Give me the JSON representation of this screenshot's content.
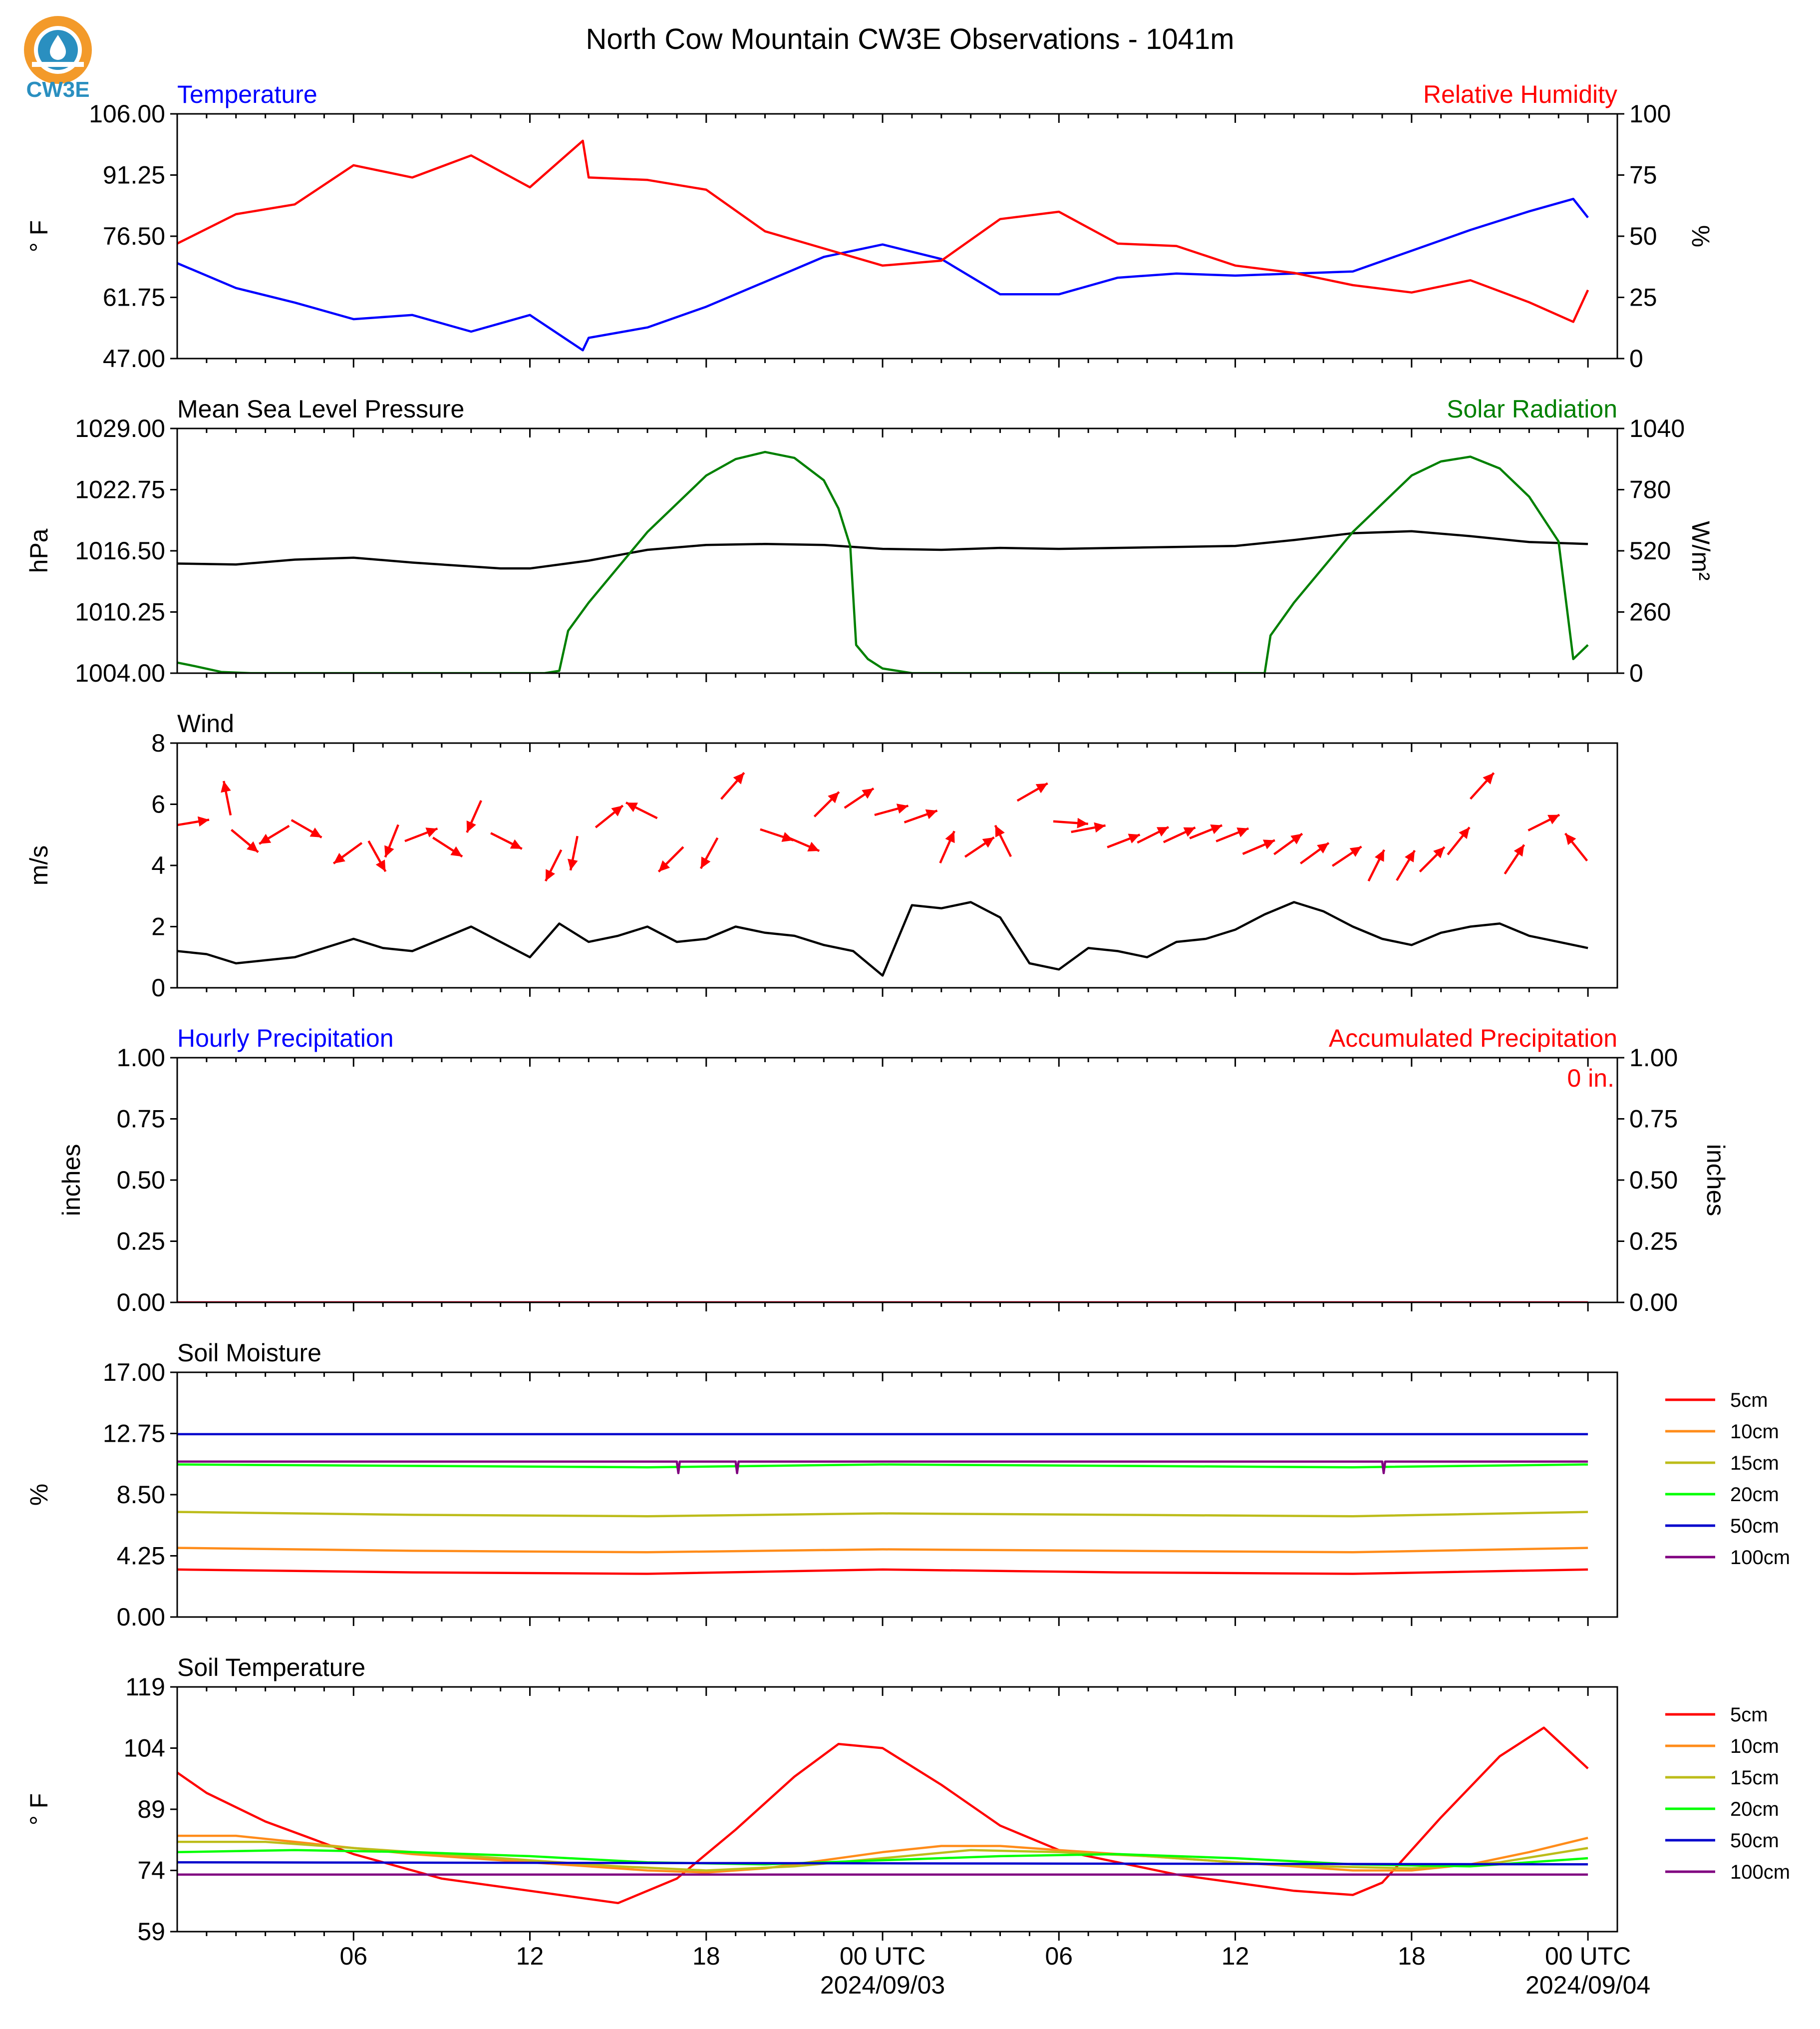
{
  "title": "North Cow Mountain CW3E Observations - 1041m",
  "logo": {
    "text": "CW3E",
    "colors": {
      "ring": "#f39a2a",
      "inner": "#2a8fc0",
      "text": "#2a8fc0"
    }
  },
  "x_axis": {
    "ticks": [
      "06",
      "12",
      "18",
      "00 UTC",
      "06",
      "12",
      "18",
      "00 UTC"
    ],
    "dates": [
      "2024/09/03",
      "2024/09/04"
    ]
  },
  "chart_data": [
    {
      "type": "line",
      "name": "temperature_rh",
      "title_left": "Temperature",
      "title_right": "Relative Humidity",
      "ylabel_left": "° F",
      "ylabel_right": "%",
      "yticks_left": [
        "106.00",
        "91.25",
        "76.50",
        "61.75",
        "47.00"
      ],
      "yticks_right": [
        "100",
        "75",
        "50",
        "25",
        "0"
      ],
      "ylim_left": [
        47,
        106
      ],
      "ylim_right": [
        0,
        100
      ],
      "x_hours": [
        0,
        2,
        4,
        6,
        8,
        10,
        12,
        13.8,
        14,
        16,
        18,
        20,
        22,
        24,
        26,
        28,
        30,
        32,
        34,
        36,
        38,
        40,
        42,
        44,
        46,
        47.5,
        48
      ],
      "series": [
        {
          "name": "Temperature",
          "color": "#0000ff",
          "axis": "left",
          "values": [
            70.0,
            64.0,
            60.5,
            56.5,
            57.5,
            53.5,
            57.5,
            49.0,
            52.0,
            54.5,
            59.5,
            65.5,
            71.5,
            74.5,
            71.0,
            62.5,
            62.5,
            66.5,
            67.5,
            67.0,
            67.5,
            68.0,
            73.0,
            78.0,
            82.5,
            85.5,
            81.0
          ]
        },
        {
          "name": "Relative Humidity",
          "color": "#ff0000",
          "axis": "right",
          "values": [
            47,
            59,
            63,
            79,
            74,
            83,
            70,
            89,
            74,
            73,
            69,
            52,
            45,
            38,
            40,
            57,
            60,
            47,
            46,
            38,
            35,
            30,
            27,
            32,
            23,
            15,
            28
          ]
        }
      ]
    },
    {
      "type": "line",
      "name": "pressure_solar",
      "title_left": "Mean Sea Level Pressure",
      "title_right": "Solar Radiation",
      "ylabel_left": "hPa",
      "ylabel_right": "W/m²",
      "yticks_left": [
        "1029.00",
        "1022.75",
        "1016.50",
        "1010.25",
        "1004.00"
      ],
      "yticks_right": [
        "1040",
        "780",
        "520",
        "260",
        "0"
      ],
      "ylim_left": [
        1004,
        1029
      ],
      "ylim_right": [
        0,
        1040
      ],
      "series": [
        {
          "name": "Mean Sea Level Pressure",
          "color": "#000000",
          "axis": "left",
          "x": [
            0,
            2,
            4,
            6,
            8,
            10,
            11,
            12,
            14,
            16,
            18,
            20,
            22,
            24,
            26,
            28,
            30,
            32,
            34,
            36,
            38,
            40,
            42,
            44,
            46,
            48
          ],
          "values": [
            1015.2,
            1015.1,
            1015.6,
            1015.8,
            1015.3,
            1014.9,
            1014.7,
            1014.7,
            1015.5,
            1016.6,
            1017.1,
            1017.2,
            1017.1,
            1016.7,
            1016.6,
            1016.8,
            1016.7,
            1016.8,
            1016.9,
            1017.0,
            1017.6,
            1018.3,
            1018.5,
            1018.0,
            1017.4,
            1017.2
          ]
        },
        {
          "name": "Solar Radiation",
          "color": "#008000",
          "axis": "right",
          "x": [
            0,
            0.6,
            1.5,
            2.5,
            12.5,
            13.0,
            13.3,
            14,
            16,
            18,
            19,
            20,
            21,
            22,
            22.5,
            22.9,
            23.1,
            23.5,
            24,
            25,
            37,
            37.2,
            38,
            40,
            42,
            43,
            44,
            45,
            46,
            47,
            47.5,
            48
          ],
          "values": [
            45,
            30,
            5,
            0,
            0,
            10,
            180,
            300,
            600,
            840,
            910,
            940,
            915,
            820,
            700,
            540,
            120,
            60,
            20,
            0,
            0,
            160,
            300,
            600,
            840,
            900,
            920,
            870,
            750,
            560,
            60,
            120
          ]
        }
      ]
    },
    {
      "type": "line",
      "name": "wind",
      "title_left": "Wind",
      "ylabel_left": "m/s",
      "yticks_left": [
        "8",
        "6",
        "4",
        "2",
        "0"
      ],
      "ylim_left": [
        0,
        8
      ],
      "series": [
        {
          "name": "Wind speed",
          "color": "#000000",
          "x": [
            0,
            1,
            2,
            3,
            4,
            5,
            6,
            7,
            8,
            9,
            10,
            11,
            12,
            13,
            14,
            15,
            16,
            17,
            18,
            19,
            20,
            21,
            22,
            23,
            24,
            25,
            26,
            27,
            28,
            29,
            30,
            31,
            32,
            33,
            34,
            35,
            36,
            37,
            38,
            39,
            40,
            41,
            42,
            43,
            44,
            45,
            46,
            47,
            48
          ],
          "values": [
            1.2,
            1.1,
            0.8,
            0.9,
            1.0,
            1.3,
            1.6,
            1.3,
            1.2,
            1.6,
            2.0,
            1.5,
            1.0,
            2.1,
            1.5,
            1.7,
            2.0,
            1.5,
            1.6,
            2.0,
            1.8,
            1.7,
            1.4,
            1.2,
            0.4,
            2.7,
            2.6,
            2.8,
            2.3,
            0.8,
            0.6,
            1.3,
            1.2,
            1.0,
            1.5,
            1.6,
            1.9,
            2.4,
            2.8,
            2.5,
            2.0,
            1.6,
            1.4,
            1.8,
            2.0,
            2.1,
            1.7,
            1.5,
            1.3
          ]
        }
      ],
      "barbs": {
        "color": "#ff0000",
        "x_hours": [
          0.5,
          1.7,
          2.3,
          3.3,
          4.4,
          5.8,
          6.8,
          7.3,
          8.3,
          9.2,
          10.1,
          11.2,
          12.8,
          13.5,
          14.7,
          15.8,
          16.8,
          18.1,
          18.9,
          20.4,
          21.3,
          22.1,
          23.2,
          24.3,
          25.3,
          26.2,
          27.3,
          28.1,
          29.1,
          30.4,
          31.0,
          32.2,
          33.2,
          34.1,
          35.0,
          35.9,
          36.8,
          37.8,
          38.7,
          39.8,
          40.8,
          41.8,
          42.7,
          43.6,
          44.4,
          45.5,
          46.5,
          47.6
        ],
        "y_ms": [
          5.4,
          6.2,
          4.8,
          5.0,
          5.2,
          4.4,
          4.3,
          4.8,
          5.0,
          4.6,
          5.6,
          4.8,
          4.0,
          4.4,
          5.6,
          5.8,
          4.2,
          4.4,
          6.6,
          5.0,
          4.7,
          6.0,
          6.2,
          5.8,
          5.6,
          4.6,
          4.6,
          4.8,
          6.4,
          5.4,
          5.2,
          4.8,
          5.0,
          5.0,
          5.1,
          5.0,
          4.6,
          4.7,
          4.4,
          4.3,
          4.0,
          4.0,
          4.2,
          4.8,
          6.6,
          4.2,
          5.4,
          4.6
        ],
        "u_ms": [
          1.8,
          -0.2,
          0.6,
          -1.0,
          1.4,
          -1.1,
          0.5,
          -0.4,
          1.3,
          1.4,
          -0.4,
          1.4,
          -0.5,
          -0.2,
          0.5,
          -0.6,
          -1.0,
          -0.6,
          0.7,
          1.8,
          1.4,
          0.7,
          1.2,
          1.1,
          1.4,
          0.4,
          1.2,
          -0.5,
          1.4,
          1.4,
          1.6,
          1.3,
          1.2,
          1.3,
          1.5,
          1.5,
          1.4,
          1.1,
          1.1,
          1.2,
          0.5,
          0.6,
          0.9,
          0.8,
          0.9,
          0.6,
          1.2,
          -0.8
        ],
        "v_ms": [
          0.3,
          1.0,
          -0.5,
          -0.6,
          -0.8,
          -0.8,
          -0.9,
          -1.0,
          0.5,
          -0.9,
          -0.9,
          -0.7,
          -1.0,
          -1.0,
          0.4,
          0.3,
          -1.0,
          -1.1,
          0.8,
          -0.6,
          -0.6,
          0.7,
          0.8,
          0.3,
          0.5,
          0.9,
          0.8,
          1.0,
          0.8,
          -0.1,
          0.3,
          0.5,
          0.6,
          0.6,
          0.6,
          0.6,
          0.6,
          0.8,
          0.8,
          0.8,
          1.0,
          1.0,
          0.9,
          1.0,
          1.0,
          0.9,
          0.6,
          1.0
        ]
      }
    },
    {
      "type": "line",
      "name": "precipitation",
      "title_left": "Hourly Precipitation",
      "title_right": "Accumulated Precipitation",
      "ylabel_left": "inches",
      "ylabel_right": "inches",
      "yticks_left": [
        "1.00",
        "0.75",
        "0.50",
        "0.25",
        "0.00"
      ],
      "yticks_right": [
        "1.00",
        "0.75",
        "0.50",
        "0.25",
        "0.00"
      ],
      "ylim_left": [
        0,
        1
      ],
      "annotation": "0 in.",
      "series": [
        {
          "name": "Hourly Precipitation",
          "color": "#0000ff",
          "x": [
            0,
            48
          ],
          "values": [
            0,
            0
          ]
        },
        {
          "name": "Accumulated Precipitation",
          "color": "#ff0000",
          "x": [
            0,
            48
          ],
          "values": [
            0,
            0
          ]
        }
      ]
    },
    {
      "type": "line",
      "name": "soil_moisture",
      "title_left": "Soil Moisture",
      "ylabel_left": "%",
      "yticks_left": [
        "17.00",
        "12.75",
        "8.50",
        "4.25",
        "0.00"
      ],
      "ylim_left": [
        0,
        17
      ],
      "legend": "right",
      "series": [
        {
          "name": "5cm",
          "color": "#ff0000",
          "x": [
            0,
            8,
            16,
            24,
            32,
            40,
            48
          ],
          "values": [
            3.3,
            3.1,
            3.0,
            3.3,
            3.1,
            3.0,
            3.3
          ]
        },
        {
          "name": "10cm",
          "color": "#ff8c1a",
          "x": [
            0,
            8,
            16,
            24,
            32,
            40,
            48
          ],
          "values": [
            4.8,
            4.6,
            4.5,
            4.7,
            4.6,
            4.5,
            4.8
          ]
        },
        {
          "name": "15cm",
          "color": "#bcbc1a",
          "x": [
            0,
            8,
            16,
            24,
            32,
            40,
            48
          ],
          "values": [
            7.3,
            7.1,
            7.0,
            7.2,
            7.1,
            7.0,
            7.3
          ]
        },
        {
          "name": "20cm",
          "color": "#00ff00",
          "x": [
            0,
            8,
            16,
            24,
            32,
            40,
            48
          ],
          "values": [
            10.6,
            10.5,
            10.4,
            10.6,
            10.5,
            10.4,
            10.6
          ]
        },
        {
          "name": "50cm",
          "color": "#0000cc",
          "x": [
            0,
            48
          ],
          "values": [
            12.7,
            12.7
          ]
        },
        {
          "name": "100cm",
          "color": "#800080",
          "x": [
            0,
            17,
            17.05,
            17.1,
            19,
            19.05,
            19.1,
            41,
            41.05,
            41.1,
            48
          ],
          "values": [
            10.8,
            10.8,
            10.0,
            10.8,
            10.8,
            10.0,
            10.8,
            10.8,
            10.0,
            10.8,
            10.8
          ]
        }
      ]
    },
    {
      "type": "line",
      "name": "soil_temperature",
      "title_left": "Soil Temperature",
      "ylabel_left": "° F",
      "yticks_left": [
        "119",
        "104",
        "89",
        "74",
        "59"
      ],
      "ylim_left": [
        59,
        119
      ],
      "legend": "right",
      "series": [
        {
          "name": "5cm",
          "color": "#ff0000",
          "x": [
            0,
            1,
            3,
            6,
            9,
            12,
            15,
            17,
            19,
            21,
            22.5,
            24,
            26,
            28,
            30,
            32,
            34,
            36,
            38,
            40,
            41,
            43,
            45,
            46.5,
            48
          ],
          "values": [
            98,
            93,
            86,
            78,
            72,
            69,
            66,
            72,
            84,
            97,
            105,
            104,
            95,
            85,
            79,
            76,
            73,
            71,
            69,
            68,
            71,
            87,
            102,
            109,
            99
          ]
        },
        {
          "name": "10cm",
          "color": "#ff8c1a",
          "x": [
            0,
            2,
            4,
            6,
            8,
            10,
            12,
            14,
            16,
            18,
            20,
            22,
            24,
            26,
            28,
            30,
            32,
            34,
            36,
            38,
            40,
            42,
            44,
            46,
            48
          ],
          "values": [
            82.5,
            82.5,
            81.0,
            79.5,
            78.0,
            77.0,
            76.0,
            75.0,
            74.0,
            73.5,
            74.5,
            76.5,
            78.5,
            80.0,
            80.0,
            79.0,
            78.0,
            77.0,
            76.0,
            75.0,
            74.0,
            74.0,
            75.5,
            78.5,
            82.0
          ]
        },
        {
          "name": "15cm",
          "color": "#bcbc1a",
          "x": [
            0,
            3,
            6,
            9,
            12,
            15,
            18,
            21,
            24,
            27,
            30,
            33,
            36,
            39,
            42,
            45,
            48
          ],
          "values": [
            81.0,
            81.0,
            79.5,
            78.0,
            76.5,
            75.0,
            74.0,
            75.0,
            77.0,
            79.0,
            78.5,
            77.5,
            76.0,
            75.0,
            74.5,
            76.0,
            79.5
          ]
        },
        {
          "name": "20cm",
          "color": "#00ff00",
          "x": [
            0,
            4,
            8,
            12,
            16,
            20,
            24,
            28,
            32,
            36,
            40,
            44,
            48
          ],
          "values": [
            78.5,
            79.0,
            78.5,
            77.5,
            76.0,
            75.5,
            76.5,
            77.5,
            78.0,
            77.0,
            75.5,
            75.0,
            77.0
          ]
        },
        {
          "name": "50cm",
          "color": "#0000cc",
          "x": [
            0,
            48
          ],
          "values": [
            76.0,
            75.5
          ]
        },
        {
          "name": "100cm",
          "color": "#800080",
          "x": [
            0,
            48
          ],
          "values": [
            73.0,
            73.0
          ]
        }
      ]
    }
  ]
}
